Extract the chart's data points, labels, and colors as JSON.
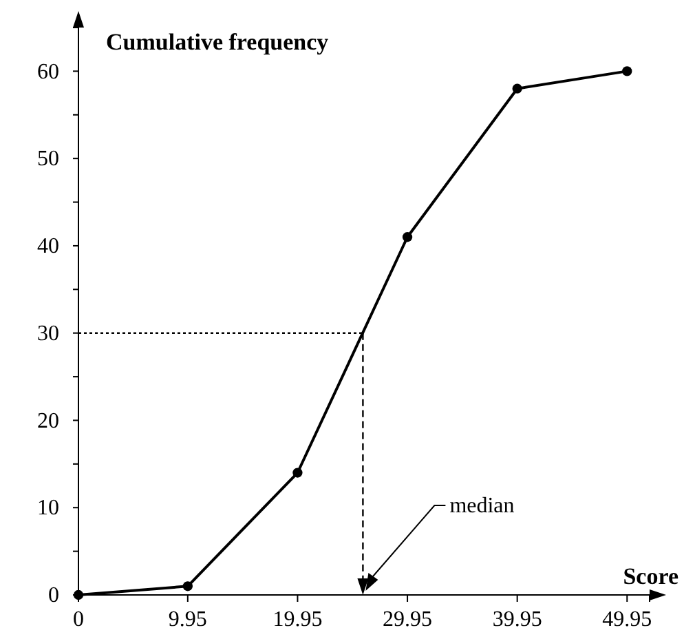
{
  "chart_data": {
    "type": "line",
    "xlabel": "Score",
    "ylabel": "Cumulative frequency",
    "xlim": [
      0,
      52
    ],
    "ylim": [
      0,
      65
    ],
    "xticks": [
      0,
      9.95,
      19.95,
      29.95,
      39.95,
      49.95
    ],
    "yticks": [
      0,
      {
        "value": 5,
        "label": null
      },
      10,
      {
        "value": 15,
        "label": null
      },
      20,
      {
        "value": 25,
        "label": null
      },
      30,
      {
        "value": 35,
        "label": null
      },
      40,
      {
        "value": 45,
        "label": null
      },
      50,
      {
        "value": 55,
        "label": null
      },
      60
    ],
    "grid": false,
    "marker": "circle",
    "line_style": "solid",
    "series": [
      {
        "x": [
          0,
          9.95,
          19.95,
          29.95,
          39.95,
          49.95
        ],
        "values": [
          0,
          1,
          14,
          41,
          58,
          60
        ],
        "color": "#000000"
      }
    ],
    "ref_lines": [
      {
        "axis": "y",
        "value": 30,
        "line_style": "dotted",
        "color": "#000000"
      },
      {
        "axis": "x",
        "value": 25.9,
        "line_style": "dashed",
        "color": "#000000"
      }
    ],
    "annotations": [
      "median"
    ]
  }
}
